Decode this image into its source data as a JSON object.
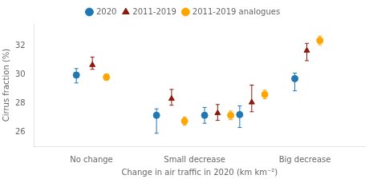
{
  "chart_data": {
    "type": "scatter",
    "xlabel": "Change in air traffic in 2020 (km km⁻²)",
    "ylabel": "Cirrus fraction (%)",
    "xlim": [
      -0.5,
      2.8
    ],
    "ylim": [
      25.0,
      33.5
    ],
    "xticks": [
      {
        "value": 0.07,
        "label": "No change"
      },
      {
        "value": 1.1,
        "label": "Small decrease"
      },
      {
        "value": 2.2,
        "label": "Big decrease"
      }
    ],
    "yticks": [
      26,
      28,
      30,
      32
    ],
    "grid": false,
    "legend": "top",
    "series": [
      {
        "name": "2020",
        "color": "#1f77b4",
        "marker": "circle",
        "x": [
          -0.08,
          0.72,
          1.2,
          1.55,
          2.1
        ],
        "values": [
          29.95,
          27.15,
          27.15,
          27.2,
          29.7
        ],
        "yerr_lo": [
          0.55,
          1.25,
          0.55,
          0.9,
          0.85
        ],
        "yerr_hi": [
          0.45,
          0.45,
          0.55,
          0.6,
          0.38
        ]
      },
      {
        "name": "2011-2019",
        "color": "#8B1A0A",
        "marker": "triangle",
        "x": [
          0.08,
          0.87,
          1.33,
          1.67,
          2.22
        ],
        "values": [
          30.65,
          28.3,
          27.3,
          28.05,
          31.65
        ],
        "yerr_lo": [
          0.3,
          0.45,
          0.5,
          0.65,
          0.7
        ],
        "yerr_hi": [
          0.55,
          0.65,
          0.6,
          1.2,
          0.5
        ]
      },
      {
        "name": "2011-2019 analogues",
        "color": "#FFA500",
        "marker": "circle",
        "x": [
          0.22,
          1.0,
          1.46,
          1.8,
          2.35
        ],
        "values": [
          29.8,
          26.75,
          27.15,
          28.6,
          32.35
        ],
        "yerr_lo": [
          0.22,
          0.28,
          0.3,
          0.3,
          0.3
        ],
        "yerr_hi": [
          0.22,
          0.28,
          0.3,
          0.3,
          0.3
        ]
      }
    ]
  }
}
